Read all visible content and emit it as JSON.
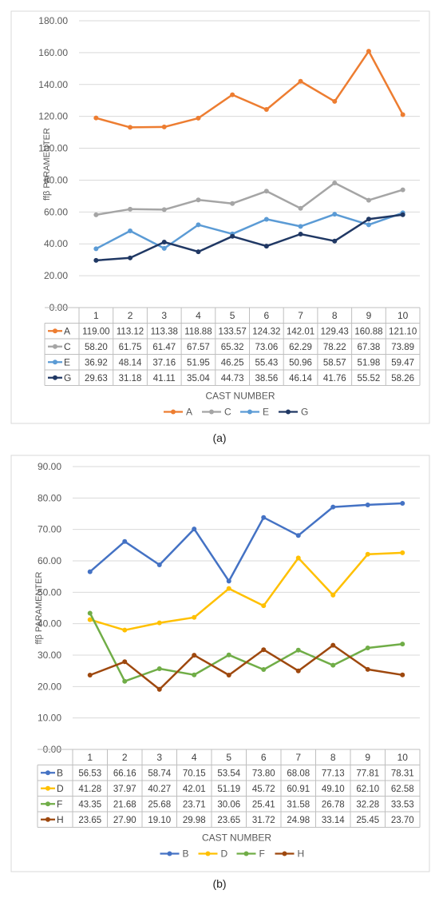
{
  "panels": [
    {
      "caption": "(a)",
      "chart_data": {
        "type": "line",
        "title": "",
        "xlabel": "CAST NUMBER",
        "ylabel": "ffβ PARAMENTER",
        "ylim": [
          0,
          180
        ],
        "yticks": [
          "0.00",
          "20.00",
          "40.00",
          "60.00",
          "80.00",
          "100.00",
          "120.00",
          "140.00",
          "160.00",
          "180.00"
        ],
        "categories": [
          "1",
          "2",
          "3",
          "4",
          "5",
          "6",
          "7",
          "8",
          "9",
          "10"
        ],
        "grid": true,
        "legend": "bottom",
        "data_table": true,
        "series": [
          {
            "name": "A",
            "color": "#ED7D31",
            "values": [
              119.0,
              113.12,
              113.38,
              118.88,
              133.57,
              124.32,
              142.01,
              129.43,
              160.88,
              121.1
            ],
            "labels": [
              "119.00",
              "113.12",
              "113.38",
              "118.88",
              "133.57",
              "124.32",
              "142.01",
              "129.43",
              "160.88",
              "121.10"
            ]
          },
          {
            "name": "C",
            "color": "#A5A5A5",
            "values": [
              58.2,
              61.75,
              61.47,
              67.57,
              65.32,
              73.06,
              62.29,
              78.22,
              67.38,
              73.89
            ],
            "labels": [
              "58.20",
              "61.75",
              "61.47",
              "67.57",
              "65.32",
              "73.06",
              "62.29",
              "78.22",
              "67.38",
              "73.89"
            ]
          },
          {
            "name": "E",
            "color": "#5B9BD5",
            "values": [
              36.92,
              48.14,
              37.16,
              51.95,
              46.25,
              55.43,
              50.96,
              58.57,
              51.98,
              59.47
            ],
            "labels": [
              "36.92",
              "48.14",
              "37.16",
              "51.95",
              "46.25",
              "55.43",
              "50.96",
              "58.57",
              "51.98",
              "59.47"
            ]
          },
          {
            "name": "G",
            "color": "#203864",
            "values": [
              29.63,
              31.18,
              41.11,
              35.04,
              44.73,
              38.56,
              46.14,
              41.76,
              55.52,
              58.26
            ],
            "labels": [
              "29.63",
              "31.18",
              "41.11",
              "35.04",
              "44.73",
              "38.56",
              "46.14",
              "41.76",
              "55.52",
              "58.26"
            ]
          }
        ]
      }
    },
    {
      "caption": "(b)",
      "chart_data": {
        "type": "line",
        "title": "",
        "xlabel": "CAST NUMBER",
        "ylabel": "ffβ PARAMENTER",
        "ylim": [
          0,
          90
        ],
        "yticks": [
          "0.00",
          "10.00",
          "20.00",
          "30.00",
          "40.00",
          "50.00",
          "60.00",
          "70.00",
          "80.00",
          "90.00"
        ],
        "categories": [
          "1",
          "2",
          "3",
          "4",
          "5",
          "6",
          "7",
          "8",
          "9",
          "10"
        ],
        "grid": true,
        "legend": "bottom",
        "data_table": true,
        "series": [
          {
            "name": "B",
            "color": "#4472C4",
            "values": [
              56.53,
              66.16,
              58.74,
              70.15,
              53.54,
              73.8,
              68.08,
              77.13,
              77.81,
              78.31
            ],
            "labels": [
              "56.53",
              "66.16",
              "58.74",
              "70.15",
              "53.54",
              "73.80",
              "68.08",
              "77.13",
              "77.81",
              "78.31"
            ]
          },
          {
            "name": "D",
            "color": "#FFC000",
            "values": [
              41.28,
              37.97,
              40.27,
              42.01,
              51.19,
              45.72,
              60.91,
              49.1,
              62.1,
              62.58
            ],
            "labels": [
              "41.28",
              "37.97",
              "40.27",
              "42.01",
              "51.19",
              "45.72",
              "60.91",
              "49.10",
              "62.10",
              "62.58"
            ]
          },
          {
            "name": "F",
            "color": "#70AD47",
            "values": [
              43.35,
              21.68,
              25.68,
              23.71,
              30.06,
              25.41,
              31.58,
              26.78,
              32.28,
              33.53
            ],
            "labels": [
              "43.35",
              "21.68",
              "25.68",
              "23.71",
              "30.06",
              "25.41",
              "31.58",
              "26.78",
              "32.28",
              "33.53"
            ]
          },
          {
            "name": "H",
            "color": "#9E480E",
            "values": [
              23.65,
              27.9,
              19.1,
              29.98,
              23.65,
              31.72,
              24.98,
              33.14,
              25.45,
              23.7
            ],
            "labels": [
              "23.65",
              "27.90",
              "19.10",
              "29.98",
              "23.65",
              "31.72",
              "24.98",
              "33.14",
              "25.45",
              "23.70"
            ]
          }
        ]
      }
    }
  ]
}
